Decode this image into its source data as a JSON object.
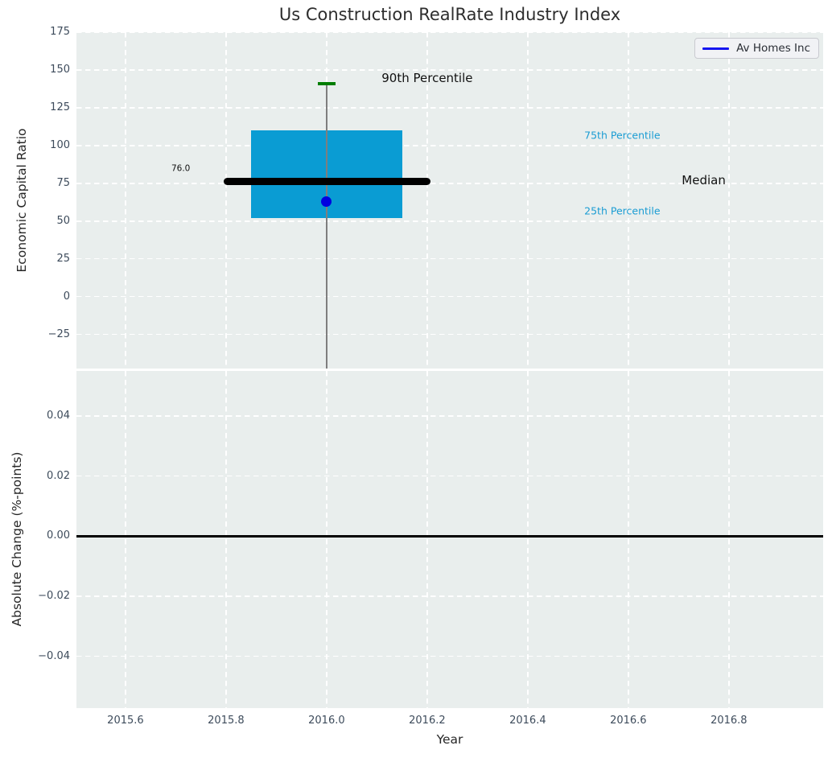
{
  "figure": {
    "title": "Us Construction RealRate Industry Index"
  },
  "legend": {
    "label": "Av Homes Inc"
  },
  "colors": {
    "axes_bg": "#e9eeed",
    "grid": "#ffffff",
    "box_fill": "#0a9cd3",
    "median_line": "#000000",
    "whisker": "#7e7e7e",
    "cap": "#007d00",
    "series_marker": "#0101e0",
    "series_line": "#1515f0",
    "tick_label": "#3d4b5b",
    "cyan_text": "#1a9cd3",
    "legend_bg": "#f1f2f5",
    "legend_border": "#c9cad0"
  },
  "chart_data": [
    {
      "id": "economic-capital-ratio",
      "type": "box",
      "title": "Us Construction RealRate Industry Index",
      "ylabel": "Economic Capital Ratio",
      "xlim": [
        2015.5025,
        2016.9875
      ],
      "ylim": [
        -47.5,
        175
      ],
      "yticks": [
        175,
        150,
        125,
        100,
        75,
        50,
        25,
        0,
        -25
      ],
      "ytick_labels": [
        "175",
        "150",
        "125",
        "100",
        "75",
        "50",
        "25",
        "0",
        "−25"
      ],
      "xticks": [
        2015.6,
        2015.8,
        2016.0,
        2016.2,
        2016.4,
        2016.6,
        2016.8
      ],
      "grid": "white dashed, on",
      "legend_position": "upper right",
      "boxplot": {
        "x": 2016.0,
        "box_half_width": 0.15,
        "q1": 52.0,
        "median": 76.0,
        "q3": 110.0,
        "p90": 141.0,
        "median_line_span": [
          2015.795,
          2016.206
        ],
        "cap_half_width": 0.017,
        "whisker_clipped_below_axis": true
      },
      "series": [
        {
          "name": "Av Homes Inc",
          "marker": "circle",
          "points": [
            {
              "x": 2016.0,
              "y": 63.0
            }
          ]
        }
      ],
      "annotations": [
        {
          "id": "median-value",
          "text": "76.0",
          "x": 2015.71,
          "y": 84.6,
          "size": 10.5,
          "color": "#111111"
        },
        {
          "id": "p90-label",
          "text": "90th Percentile",
          "x": 2016.2,
          "y": 144.6,
          "size": 15,
          "color": "#111111"
        },
        {
          "id": "p75-label",
          "text": "75th Percentile",
          "x": 2016.588,
          "y": 106.7,
          "size": 12.5,
          "color": "#1a9cd3"
        },
        {
          "id": "median-label",
          "text": "Median",
          "x": 2016.75,
          "y": 76.9,
          "size": 15,
          "color": "#111111"
        },
        {
          "id": "p25-label",
          "text": "25th Percentile",
          "x": 2016.588,
          "y": 56.6,
          "size": 12.5,
          "color": "#1a9cd3"
        }
      ]
    },
    {
      "id": "absolute-change",
      "type": "line",
      "ylabel": "Absolute Change (%-points)",
      "xlabel": "Year",
      "xlim": [
        2015.5025,
        2016.9875
      ],
      "ylim": [
        -0.0572,
        0.055
      ],
      "yticks": [
        0.04,
        0.02,
        0.0,
        -0.02,
        -0.04
      ],
      "ytick_labels": [
        "0.04",
        "0.02",
        "0.00",
        "−0.02",
        "−0.04"
      ],
      "xticks": [
        2015.6,
        2015.8,
        2016.0,
        2016.2,
        2016.4,
        2016.6,
        2016.8
      ],
      "xtick_labels": [
        "2015.6",
        "2015.8",
        "2016.0",
        "2016.2",
        "2016.4",
        "2016.6",
        "2016.8"
      ],
      "grid": "white dashed, on",
      "axhline": 0.0,
      "series": []
    }
  ]
}
